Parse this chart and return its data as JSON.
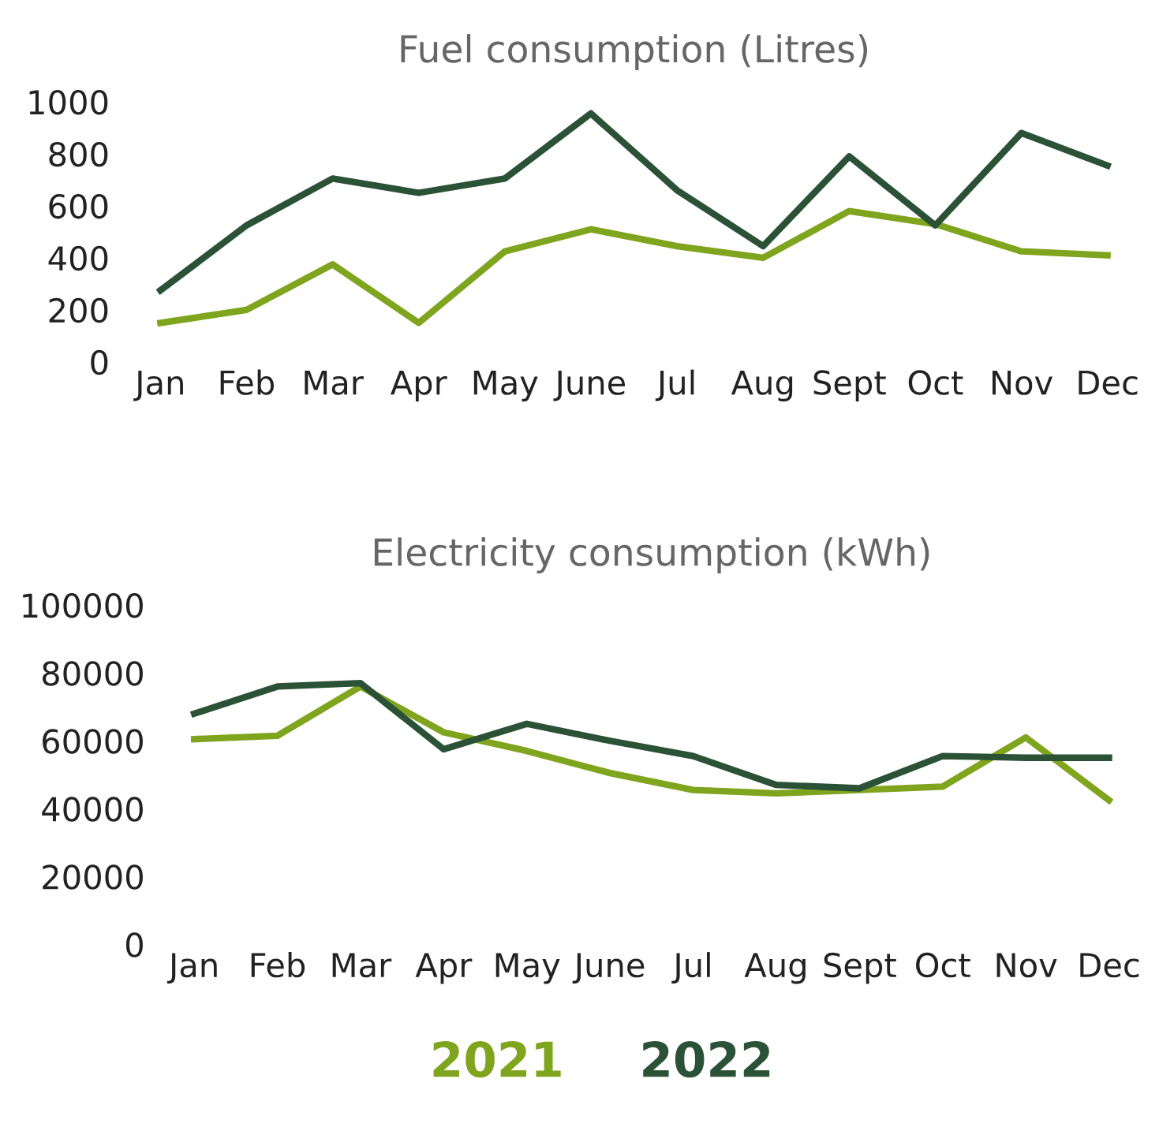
{
  "chart_data": [
    {
      "type": "line",
      "title": "Fuel consumption (Litres)",
      "categories": [
        "Jan",
        "Feb",
        "Mar",
        "Apr",
        "May",
        "June",
        "Jul",
        "Aug",
        "Sept",
        "Oct",
        "Nov",
        "Dec"
      ],
      "series": [
        {
          "color": "#7fa41d",
          "values": [
            150,
            200,
            375,
            150,
            425,
            510,
            445,
            400,
            580,
            530,
            425,
            410
          ]
        },
        {
          "color": "#2b5236",
          "values": [
            275,
            525,
            705,
            650,
            705,
            955,
            660,
            445,
            790,
            525,
            880,
            755
          ]
        }
      ],
      "ylim": [
        0,
        1000
      ],
      "yticks": [
        0,
        200,
        400,
        600,
        800,
        1000
      ],
      "grid": false,
      "legend": false
    },
    {
      "type": "line",
      "title": "Electricity consumption (kWh)",
      "categories": [
        "Jan",
        "Feb",
        "Mar",
        "Apr",
        "May",
        "June",
        "Jul",
        "Aug",
        "Sept",
        "Oct",
        "Nov",
        "Dec"
      ],
      "series": [
        {
          "name": "2021",
          "color": "#7fa41d",
          "values": [
            60500,
            61500,
            76000,
            62500,
            57000,
            50500,
            45500,
            44500,
            45500,
            46500,
            61000,
            42500
          ]
        },
        {
          "name": "2022",
          "color": "#2b5236",
          "values": [
            68000,
            76000,
            77000,
            57500,
            65000,
            60000,
            55500,
            47000,
            46000,
            55500,
            55000,
            55000
          ]
        }
      ],
      "ylim": [
        0,
        100000
      ],
      "yticks": [
        0,
        20000,
        40000,
        60000,
        80000,
        100000
      ],
      "grid": false
    }
  ]
}
